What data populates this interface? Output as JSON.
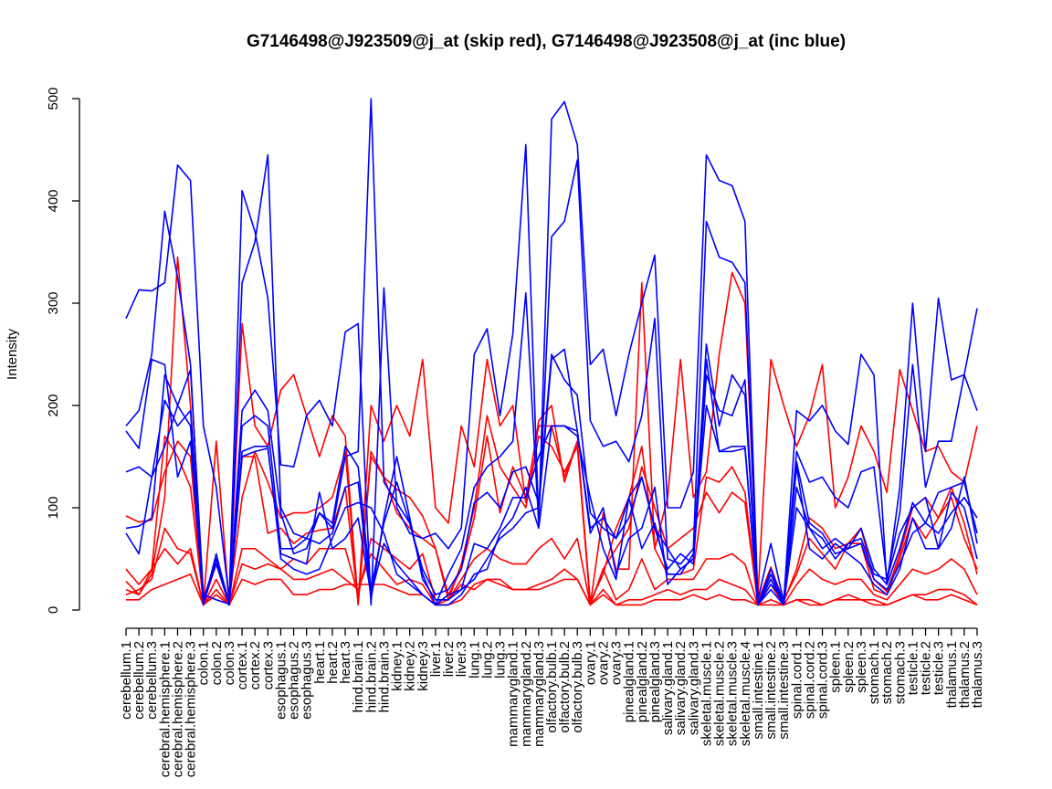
{
  "chart_data": {
    "type": "line",
    "title": "G7146498@J923509@j_at (skip red), G7146498@J923508@j_at (inc blue)",
    "xlabel": "",
    "ylabel": "Intensity",
    "ylim": [
      0,
      500
    ],
    "yticks": [
      0,
      100,
      200,
      300,
      400,
      500
    ],
    "categories": [
      "cerebellum.1",
      "cerebellum.2",
      "cerebellum.3",
      "cerebral.hemisphere.1",
      "cerebral.hemisphere.2",
      "cerebral.hemisphere.3",
      "colon.1",
      "colon.2",
      "colon.3",
      "cortex.1",
      "cortex.2",
      "cortex.3",
      "esophagus.1",
      "esophagus.2",
      "esophagus.3",
      "heart.1",
      "heart.2",
      "heart.3",
      "hind.brain.1",
      "hind.brain.2",
      "hind.brain.3",
      "kidney.1",
      "kidney.2",
      "kidney.3",
      "liver.1",
      "liver.2",
      "liver.3",
      "lung.1",
      "lung.2",
      "lung.3",
      "mammarygland.1",
      "mammarygland.2",
      "mammarygland.3",
      "olfactory.bulb.1",
      "olfactory.bulb.2",
      "olfactory.bulb.3",
      "ovary.1",
      "ovary.2",
      "ovary.3",
      "pinealgland.1",
      "pinealgland.2",
      "pinealgland.3",
      "salivary.gland.1",
      "salivary.gland.2",
      "salivary.gland.3",
      "skeletal.muscle.1",
      "skeletal.muscle.2",
      "skeletal.muscle.3",
      "skeletal.muscle.4",
      "small.intestine.1",
      "small.intestine.2",
      "small.intestine.3",
      "spinal.cord.1",
      "spinal.cord.2",
      "spinal.cord.3",
      "spleen.1",
      "spleen.2",
      "spleen.3",
      "stomach.1",
      "stomach.2",
      "stomach.3",
      "testicle.1",
      "testicle.2",
      "testicle.3",
      "thalamus.1",
      "thalamus.2",
      "thalamus.3"
    ],
    "colors": {
      "skip": "#ff0000",
      "inc": "#0000ff"
    },
    "series": [
      {
        "name": "skip-1",
        "group": "skip",
        "values": [
          92,
          86,
          88,
          135,
          165,
          150,
          6,
          45,
          8,
          150,
          150,
          75,
          80,
          65,
          75,
          78,
          80,
          120,
          8,
          150,
          130,
          118,
          110,
          92,
          60,
          15,
          40,
          90,
          170,
          95,
          140,
          110,
          180,
          180,
          130,
          165,
          8,
          35,
          80,
          110,
          160,
          60,
          35,
          35,
          40,
          130,
          125,
          140,
          115,
          8,
          42,
          8,
          40,
          90,
          80,
          60,
          65,
          80,
          30,
          18,
          55,
          100,
          110,
          90,
          120,
          85,
          35
        ]
      },
      {
        "name": "skip-2",
        "group": "skip",
        "values": [
          40,
          25,
          40,
          170,
          150,
          120,
          8,
          50,
          8,
          110,
          155,
          125,
          90,
          95,
          95,
          100,
          110,
          155,
          5,
          155,
          130,
          95,
          80,
          70,
          60,
          10,
          45,
          100,
          190,
          140,
          120,
          100,
          170,
          160,
          135,
          160,
          5,
          40,
          60,
          80,
          140,
          100,
          60,
          70,
          80,
          115,
          95,
          115,
          105,
          6,
          35,
          10,
          35,
          70,
          55,
          40,
          65,
          65,
          20,
          15,
          50,
          90,
          70,
          90,
          110,
          70,
          40
        ]
      },
      {
        "name": "skip-3",
        "group": "skip",
        "values": [
          28,
          15,
          35,
          110,
          345,
          200,
          5,
          165,
          6,
          280,
          180,
          160,
          215,
          230,
          190,
          150,
          190,
          170,
          6,
          200,
          165,
          200,
          170,
          245,
          100,
          85,
          180,
          140,
          245,
          180,
          200,
          105,
          185,
          200,
          125,
          165,
          5,
          95,
          40,
          40,
          320,
          60,
          110,
          245,
          110,
          135,
          250,
          330,
          300,
          12,
          245,
          200,
          160,
          190,
          240,
          100,
          130,
          180,
          155,
          115,
          235,
          195,
          155,
          160,
          135,
          125,
          180
        ]
      },
      {
        "name": "skip-4",
        "group": "skip",
        "values": [
          20,
          15,
          40,
          60,
          45,
          60,
          5,
          20,
          5,
          45,
          40,
          45,
          40,
          30,
          30,
          35,
          40,
          30,
          20,
          55,
          40,
          25,
          30,
          25,
          5,
          10,
          25,
          20,
          30,
          30,
          20,
          20,
          25,
          30,
          40,
          30,
          5,
          20,
          5,
          10,
          10,
          15,
          20,
          15,
          20,
          20,
          30,
          25,
          20,
          5,
          10,
          5,
          10,
          10,
          5,
          10,
          15,
          10,
          10,
          5,
          10,
          15,
          15,
          20,
          20,
          15,
          5
        ]
      },
      {
        "name": "skip-5",
        "group": "skip",
        "values": [
          10,
          10,
          20,
          25,
          30,
          35,
          5,
          15,
          5,
          30,
          25,
          30,
          30,
          15,
          15,
          20,
          20,
          25,
          25,
          25,
          25,
          20,
          15,
          15,
          5,
          5,
          10,
          25,
          30,
          25,
          20,
          20,
          20,
          25,
          30,
          30,
          5,
          15,
          5,
          5,
          5,
          10,
          10,
          10,
          15,
          10,
          15,
          10,
          10,
          5,
          5,
          5,
          10,
          5,
          5,
          10,
          10,
          10,
          5,
          5,
          10,
          15,
          10,
          10,
          15,
          10,
          5
        ]
      },
      {
        "name": "skip-6",
        "group": "skip",
        "values": [
          15,
          20,
          30,
          80,
          60,
          55,
          5,
          30,
          5,
          60,
          60,
          50,
          40,
          50,
          45,
          60,
          60,
          60,
          15,
          70,
          60,
          50,
          40,
          55,
          10,
          10,
          30,
          50,
          60,
          50,
          45,
          45,
          60,
          70,
          50,
          70,
          5,
          40,
          10,
          20,
          50,
          20,
          30,
          30,
          30,
          50,
          50,
          55,
          45,
          5,
          25,
          5,
          25,
          40,
          30,
          25,
          30,
          30,
          15,
          10,
          25,
          40,
          35,
          40,
          50,
          40,
          15
        ]
      },
      {
        "name": "inc-1",
        "group": "inc",
        "values": [
          285,
          313,
          312,
          320,
          435,
          420,
          180,
          120,
          10,
          410,
          370,
          305,
          142,
          140,
          190,
          205,
          180,
          272,
          280,
          5,
          315,
          100,
          75,
          70,
          75,
          60,
          80,
          250,
          275,
          190,
          270,
          455,
          85,
          480,
          497,
          455,
          240,
          255,
          190,
          250,
          300,
          347,
          100,
          100,
          135,
          445,
          420,
          415,
          380,
          10,
          65,
          8,
          195,
          185,
          200,
          175,
          162,
          250,
          230,
          25,
          120,
          300,
          155,
          305,
          225,
          230,
          295
        ]
      },
      {
        "name": "inc-2",
        "group": "inc",
        "values": [
          180,
          195,
          250,
          390,
          325,
          240,
          5,
          50,
          5,
          320,
          360,
          445,
          100,
          75,
          70,
          95,
          80,
          150,
          155,
          500,
          125,
          105,
          85,
          35,
          5,
          35,
          60,
          120,
          140,
          150,
          165,
          310,
          85,
          365,
          380,
          440,
          185,
          160,
          165,
          145,
          190,
          285,
          50,
          45,
          60,
          380,
          345,
          340,
          320,
          5,
          40,
          8,
          155,
          125,
          130,
          110,
          100,
          135,
          140,
          30,
          95,
          240,
          120,
          165,
          165,
          230,
          195
        ]
      },
      {
        "name": "inc-3",
        "group": "inc",
        "values": [
          175,
          158,
          245,
          240,
          130,
          165,
          10,
          50,
          5,
          180,
          190,
          180,
          60,
          60,
          70,
          65,
          75,
          120,
          125,
          10,
          90,
          150,
          90,
          30,
          10,
          10,
          20,
          65,
          60,
          80,
          110,
          110,
          150,
          180,
          180,
          175,
          75,
          100,
          35,
          70,
          80,
          120,
          25,
          40,
          50,
          245,
          155,
          160,
          160,
          5,
          30,
          5,
          120,
          80,
          70,
          50,
          65,
          70,
          35,
          30,
          75,
          100,
          110,
          60,
          80,
          130,
          65
        ]
      },
      {
        "name": "inc-4",
        "group": "inc",
        "values": [
          80,
          82,
          90,
          230,
          200,
          180,
          5,
          55,
          5,
          195,
          215,
          195,
          95,
          55,
          60,
          95,
          85,
          160,
          140,
          20,
          85,
          125,
          85,
          40,
          15,
          20,
          40,
          105,
          115,
          100,
          135,
          140,
          105,
          250,
          225,
          210,
          95,
          80,
          70,
          90,
          130,
          80,
          60,
          40,
          50,
          260,
          180,
          230,
          210,
          5,
          35,
          5,
          100,
          80,
          60,
          70,
          60,
          80,
          40,
          25,
          60,
          105,
          85,
          115,
          120,
          125,
          75
        ]
      },
      {
        "name": "inc-5",
        "group": "inc",
        "values": [
          135,
          140,
          130,
          160,
          200,
          235,
          15,
          10,
          6,
          150,
          155,
          158,
          55,
          50,
          45,
          115,
          60,
          70,
          90,
          15,
          65,
          45,
          30,
          15,
          5,
          15,
          20,
          30,
          50,
          70,
          80,
          95,
          100,
          245,
          255,
          175,
          80,
          90,
          70,
          110,
          130,
          80,
          40,
          55,
          45,
          230,
          195,
          190,
          225,
          5,
          20,
          5,
          145,
          85,
          75,
          55,
          60,
          65,
          30,
          20,
          45,
          75,
          85,
          75,
          95,
          110,
          90
        ]
      },
      {
        "name": "inc-6",
        "group": "inc",
        "values": [
          75,
          55,
          130,
          205,
          180,
          195,
          10,
          45,
          5,
          155,
          160,
          160,
          50,
          40,
          35,
          40,
          70,
          100,
          105,
          100,
          75,
          35,
          25,
          15,
          5,
          5,
          15,
          35,
          40,
          75,
          90,
          120,
          80,
          180,
          180,
          170,
          110,
          60,
          30,
          110,
          60,
          85,
          35,
          35,
          55,
          200,
          155,
          155,
          158,
          5,
          25,
          10,
          140,
          60,
          50,
          65,
          55,
          45,
          25,
          15,
          40,
          90,
          60,
          60,
          115,
          100,
          50
        ]
      }
    ]
  }
}
